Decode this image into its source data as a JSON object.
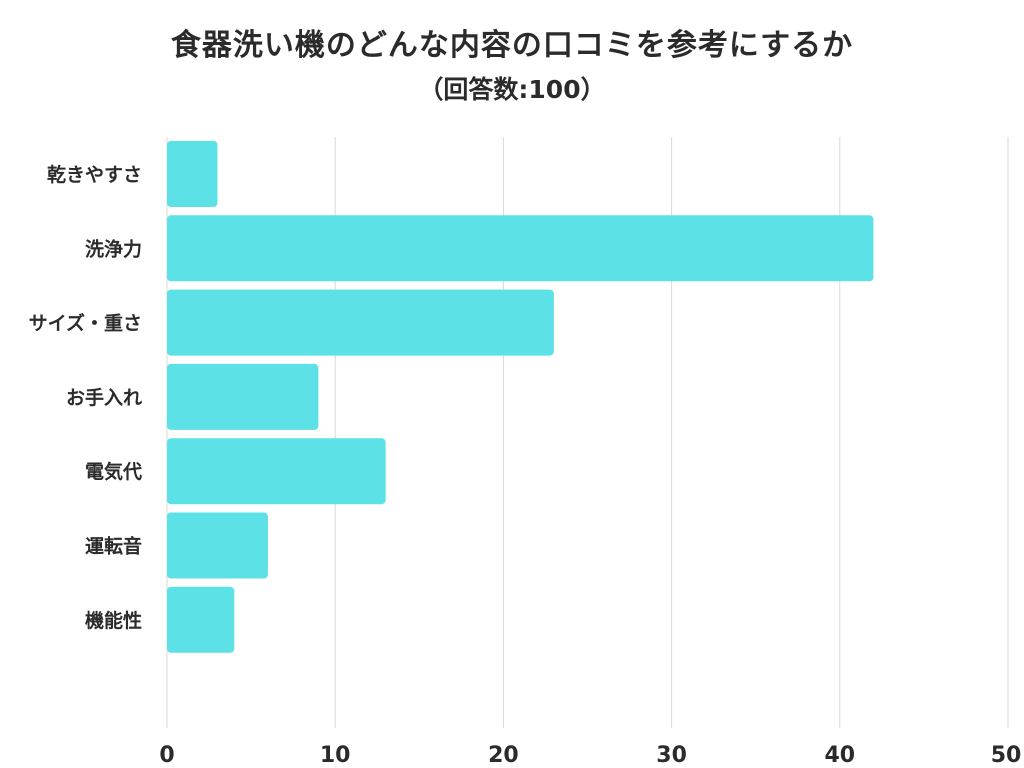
{
  "chart_data": {
    "type": "bar",
    "orientation": "horizontal",
    "title": "食器洗い機のどんな内容の口コミを参考にするか",
    "subtitle": "（回答数:100）",
    "categories": [
      "乾きやすさ",
      "洗浄力",
      "サイズ・重さ",
      "お手入れ",
      "電気代",
      "運転音",
      "機能性"
    ],
    "values": [
      3,
      42,
      23,
      9,
      13,
      6,
      4
    ],
    "xlim": [
      0,
      50
    ],
    "xticks": [
      0,
      10,
      20,
      30,
      40,
      50
    ],
    "grid": true,
    "legend": "none",
    "bar_color": "#5ce1e6"
  }
}
